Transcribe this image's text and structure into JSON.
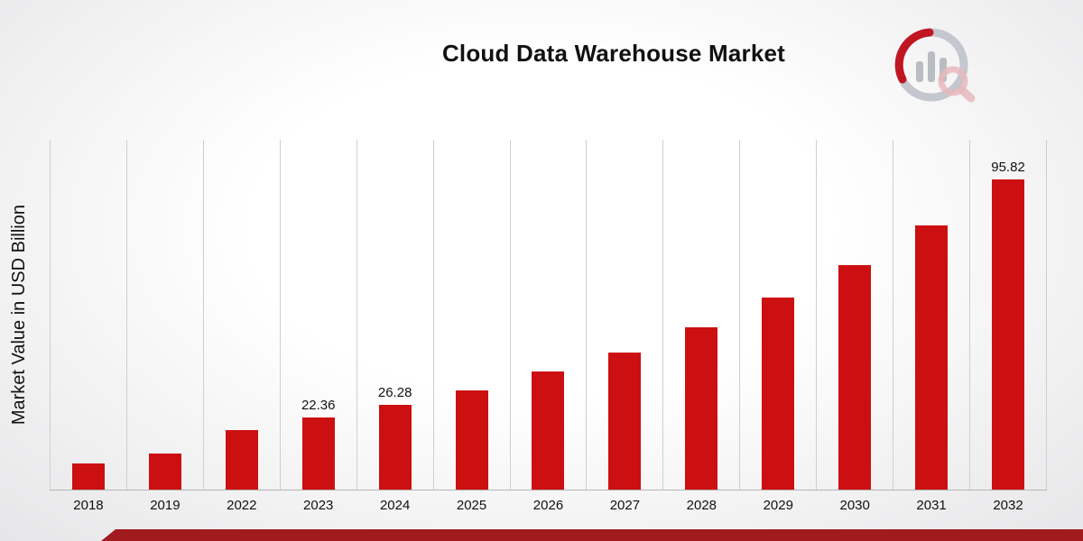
{
  "page": {
    "title": "Cloud Data Warehouse Market",
    "logo_name": "market-research-future-logo"
  },
  "chart_data": {
    "type": "bar",
    "title": "Cloud Data Warehouse Market",
    "xlabel": "",
    "ylabel": "Market Value in USD Billion",
    "categories": [
      "2018",
      "2019",
      "2022",
      "2023",
      "2024",
      "2025",
      "2026",
      "2027",
      "2028",
      "2029",
      "2030",
      "2031",
      "2032"
    ],
    "values": [
      8.0,
      11.0,
      18.5,
      22.36,
      26.28,
      30.6,
      36.4,
      42.3,
      50.0,
      59.3,
      69.3,
      81.7,
      95.82
    ],
    "data_labels": [
      null,
      null,
      null,
      "22.36",
      "26.28",
      null,
      null,
      null,
      null,
      null,
      null,
      null,
      "95.82"
    ],
    "units": "USD Billion",
    "ylim": [
      0,
      108
    ],
    "grid": "vertical-only",
    "legend": "none"
  },
  "colors": {
    "bar": "#cc1011",
    "footer_strip": "#a01a1e",
    "gridline": "#cfcfcf",
    "axis_line": "#b5b5b5",
    "logo_gray": "#c0c3c9",
    "logo_red": "#c01622",
    "logo_pink": "#e6b9bc"
  }
}
